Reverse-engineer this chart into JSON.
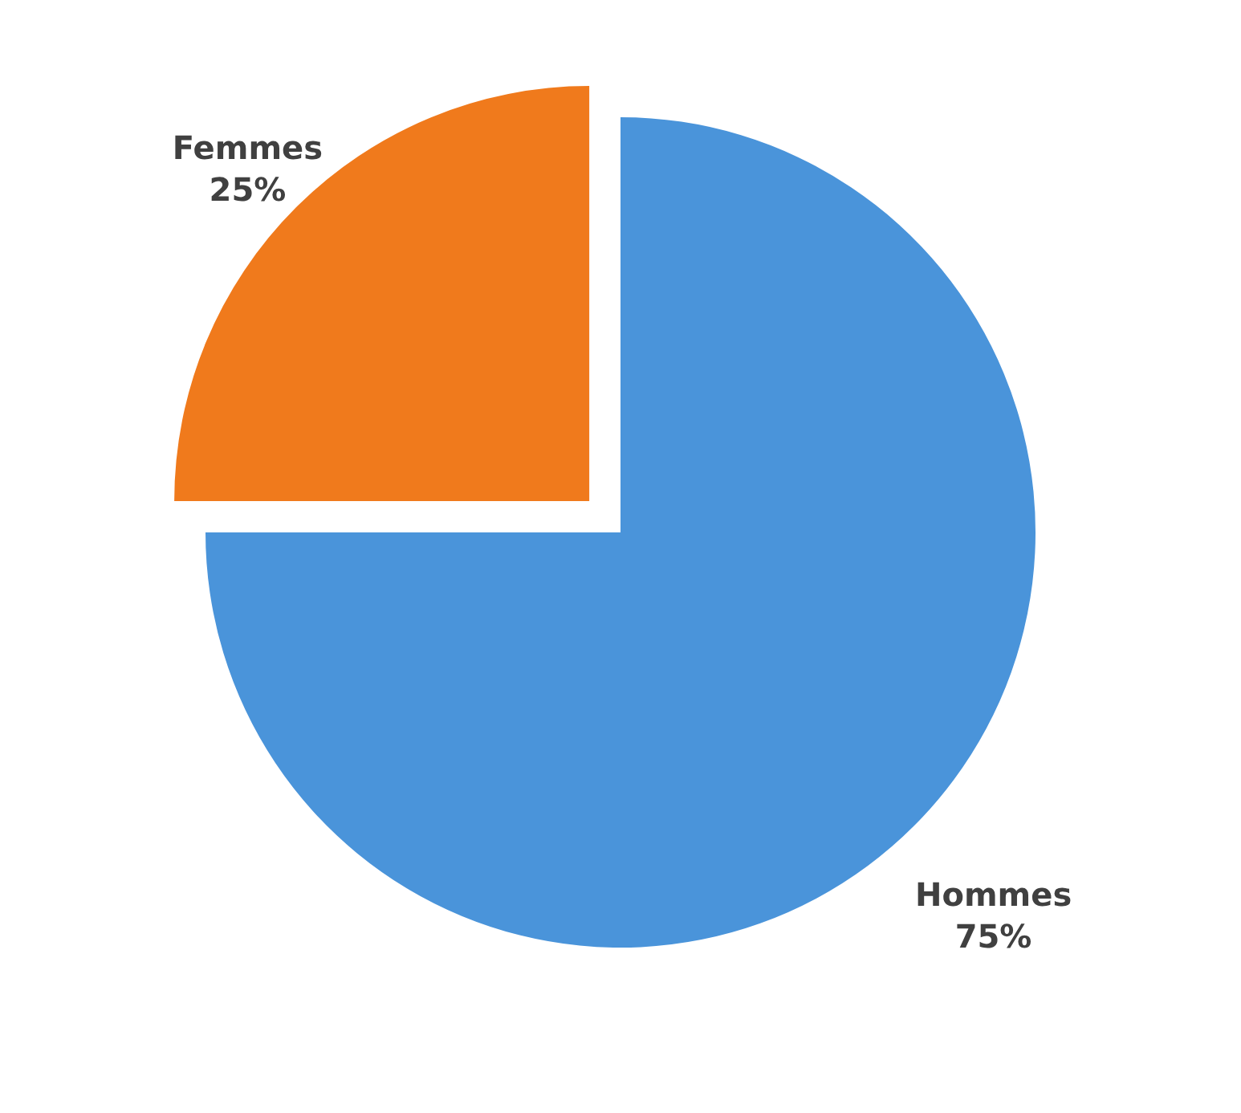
{
  "chart_data": {
    "type": "pie",
    "categories": [
      "Hommes",
      "Femmes"
    ],
    "values": [
      75,
      25
    ],
    "colors": [
      "#4a94da",
      "#f07a1c"
    ],
    "value_labels": [
      "75%",
      "25%"
    ],
    "legend": false
  }
}
